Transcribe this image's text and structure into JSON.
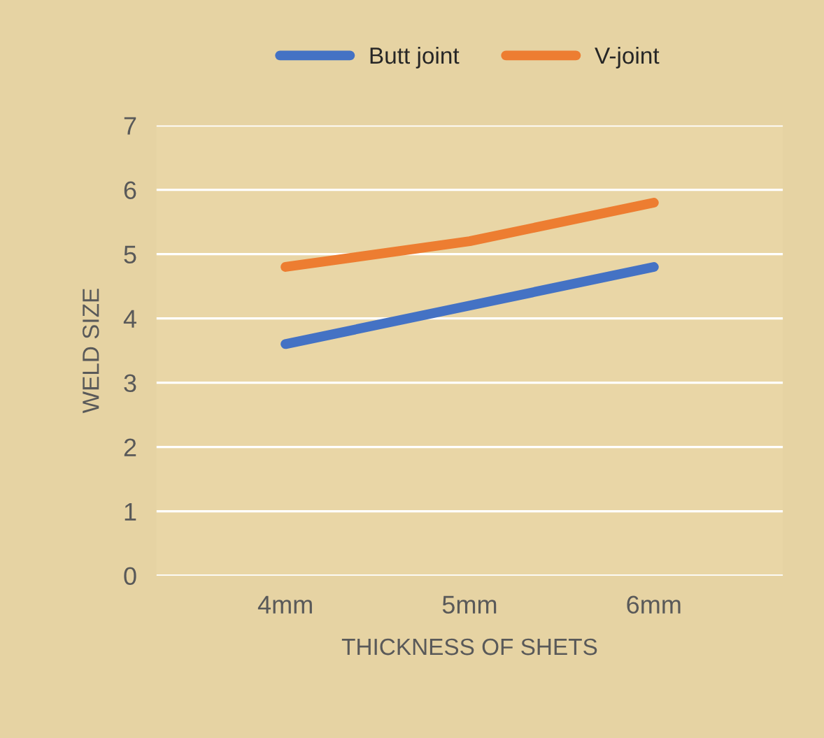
{
  "chart_data": {
    "type": "line",
    "xlabel": "THICKNESS OF SHETS",
    "ylabel": "WELD SIZE",
    "categories": [
      "4mm",
      "5mm",
      "6mm"
    ],
    "series": [
      {
        "name": "Butt joint",
        "color": "#4472c4",
        "values": [
          3.6,
          4.2,
          4.8
        ]
      },
      {
        "name": "V-joint",
        "color": "#ed7d31",
        "values": [
          4.8,
          5.2,
          5.8
        ]
      }
    ],
    "ylim": [
      0,
      7
    ],
    "yticks": [
      0,
      1,
      2,
      3,
      4,
      5,
      6,
      7
    ],
    "grid": "y",
    "legend": "top",
    "marker": "none",
    "line_style": "solid"
  }
}
